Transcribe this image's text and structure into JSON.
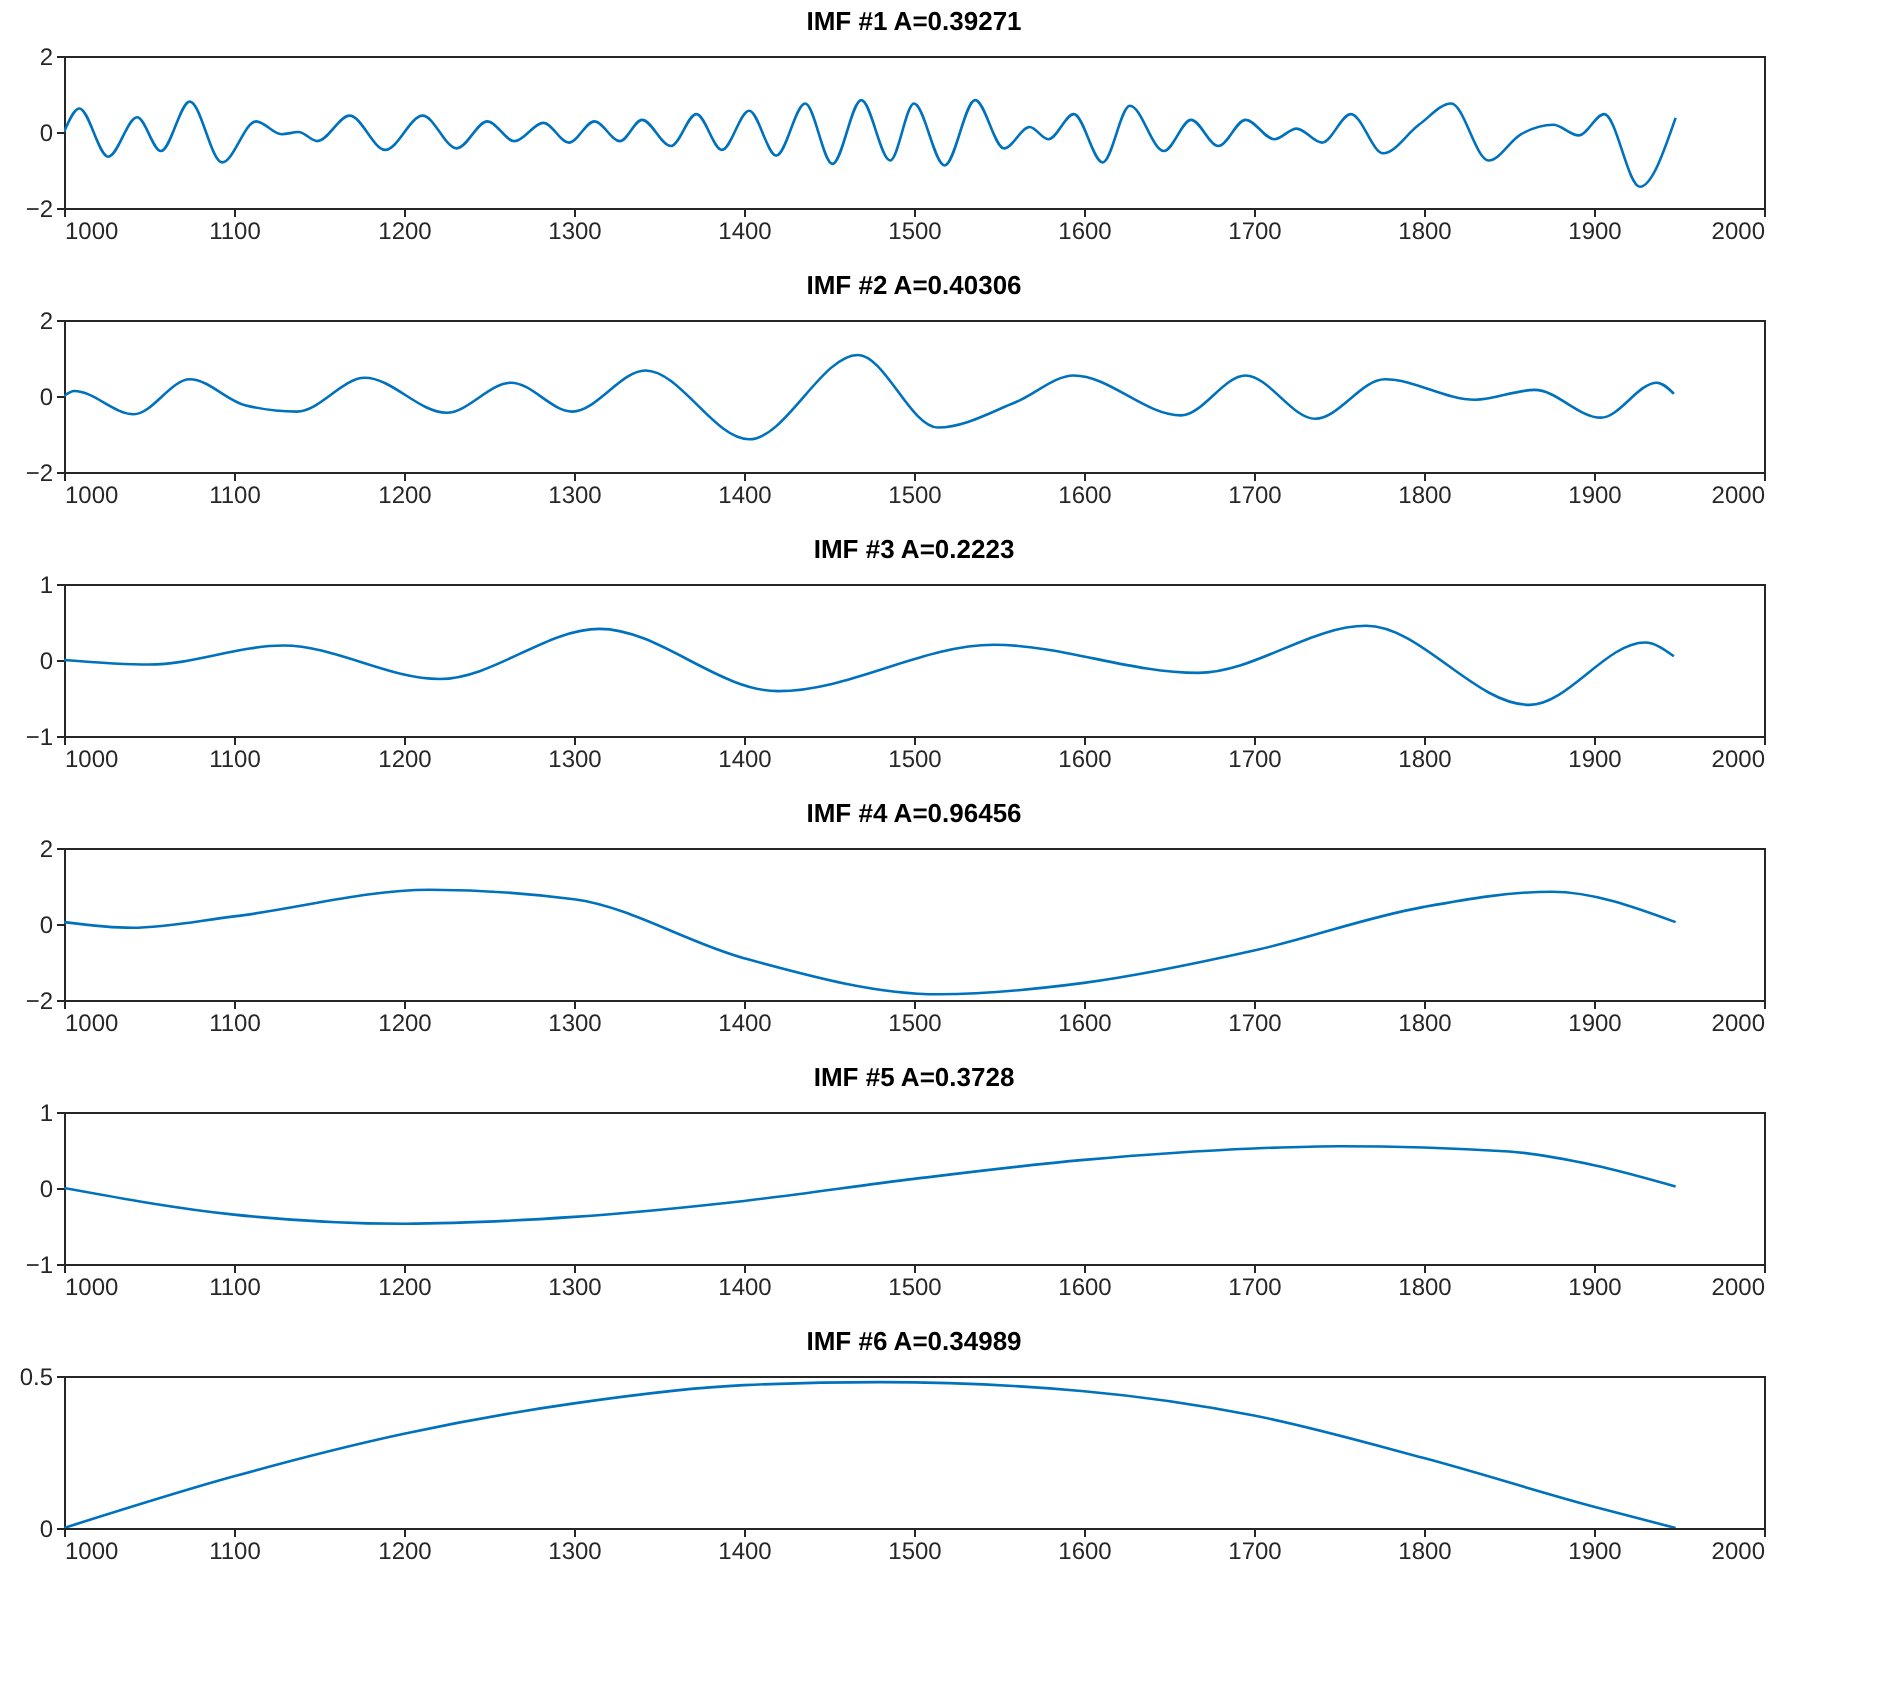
{
  "chart_data": [
    {
      "type": "line",
      "title": "IMF #1 A=0.39271",
      "xlim": [
        1000,
        2000
      ],
      "xticks": [
        1000,
        1100,
        1200,
        1300,
        1400,
        1500,
        1600,
        1700,
        1800,
        1900,
        2000
      ],
      "ylim": [
        -2,
        2
      ],
      "yticks": [
        -2,
        0,
        2
      ],
      "color": "#0072bd",
      "x": [
        1000,
        1009,
        1026,
        1043,
        1057,
        1074,
        1093,
        1113,
        1128,
        1138,
        1149,
        1168,
        1189,
        1211,
        1231,
        1249,
        1265,
        1282,
        1297,
        1312,
        1327,
        1340,
        1357,
        1372,
        1387,
        1403,
        1419,
        1436,
        1452,
        1469,
        1486,
        1500,
        1518,
        1536,
        1553,
        1568,
        1579,
        1594,
        1611,
        1627,
        1647,
        1663,
        1679,
        1695,
        1712,
        1725,
        1740,
        1757,
        1776,
        1797,
        1816,
        1838,
        1857,
        1876,
        1891,
        1906,
        1927,
        1948
      ],
      "values": [
        0,
        0.62,
        -0.65,
        0.39,
        -0.5,
        0.8,
        -0.8,
        0.28,
        -0.06,
        0,
        -0.24,
        0.43,
        -0.47,
        0.43,
        -0.43,
        0.28,
        -0.24,
        0.24,
        -0.28,
        0.28,
        -0.24,
        0.32,
        -0.37,
        0.47,
        -0.47,
        0.56,
        -0.62,
        0.75,
        -0.84,
        0.84,
        -0.75,
        0.75,
        -0.88,
        0.84,
        -0.43,
        0.13,
        -0.19,
        0.47,
        -0.8,
        0.69,
        -0.5,
        0.32,
        -0.37,
        0.32,
        -0.19,
        0.09,
        -0.28,
        0.47,
        -0.56,
        0.19,
        0.75,
        -0.75,
        -0.06,
        0.19,
        -0.09,
        0.47,
        -1.44,
        0.37
      ]
    },
    {
      "type": "line",
      "title": "IMF #2 A=0.40306",
      "xlim": [
        1000,
        2000
      ],
      "xticks": [
        1000,
        1100,
        1200,
        1300,
        1400,
        1500,
        1600,
        1700,
        1800,
        1900,
        2000
      ],
      "ylim": [
        -2,
        2
      ],
      "yticks": [
        -2,
        0,
        2
      ],
      "color": "#0072bd",
      "x": [
        1000,
        1006,
        1041,
        1074,
        1107,
        1137,
        1177,
        1225,
        1263,
        1299,
        1342,
        1403,
        1467,
        1514,
        1560,
        1594,
        1657,
        1695,
        1736,
        1777,
        1830,
        1865,
        1904,
        1937,
        1947
      ],
      "values": [
        0,
        0.13,
        -0.48,
        0.44,
        -0.25,
        -0.41,
        0.48,
        -0.44,
        0.35,
        -0.41,
        0.67,
        -1.14,
        1.08,
        -0.83,
        -0.16,
        0.54,
        -0.51,
        0.54,
        -0.6,
        0.44,
        -0.1,
        0.16,
        -0.57,
        0.35,
        0.06
      ]
    },
    {
      "type": "line",
      "title": "IMF #3 A=0.2223",
      "xlim": [
        1000,
        2000
      ],
      "xticks": [
        1000,
        1100,
        1200,
        1300,
        1400,
        1500,
        1600,
        1700,
        1800,
        1900,
        2000
      ],
      "ylim": [
        -1,
        1
      ],
      "yticks": [
        -1,
        0,
        1
      ],
      "color": "#0072bd",
      "x": [
        1000,
        1050,
        1129,
        1221,
        1315,
        1420,
        1547,
        1667,
        1766,
        1862,
        1930,
        1947
      ],
      "values": [
        0,
        -0.06,
        0.19,
        -0.25,
        0.41,
        -0.41,
        0.2,
        -0.17,
        0.45,
        -0.59,
        0.23,
        0.05
      ]
    },
    {
      "type": "line",
      "title": "IMF #4 A=0.96456",
      "xlim": [
        1000,
        2000
      ],
      "xticks": [
        1000,
        1100,
        1200,
        1300,
        1400,
        1500,
        1600,
        1700,
        1800,
        1900,
        2000
      ],
      "ylim": [
        -2,
        2
      ],
      "yticks": [
        -2,
        0,
        2
      ],
      "color": "#0072bd",
      "x": [
        1000,
        1040,
        1100,
        1215,
        1300,
        1400,
        1515,
        1600,
        1700,
        1800,
        1875,
        1948
      ],
      "values": [
        0.05,
        -0.1,
        0.2,
        0.9,
        0.65,
        -0.9,
        -1.85,
        -1.55,
        -0.7,
        0.45,
        0.85,
        0.05
      ]
    },
    {
      "type": "line",
      "title": "IMF #5 A=0.3728",
      "xlim": [
        1000,
        2000
      ],
      "xticks": [
        1000,
        1100,
        1200,
        1300,
        1400,
        1500,
        1600,
        1700,
        1800,
        1900,
        2000
      ],
      "ylim": [
        -1,
        1
      ],
      "yticks": [
        -1,
        0,
        1
      ],
      "color": "#0072bd",
      "x": [
        1000,
        1100,
        1200,
        1300,
        1400,
        1500,
        1600,
        1700,
        1750,
        1850,
        1900,
        1948
      ],
      "values": [
        0,
        -0.35,
        -0.47,
        -0.38,
        -0.17,
        0.12,
        0.37,
        0.52,
        0.55,
        0.48,
        0.3,
        0.02
      ]
    },
    {
      "type": "line",
      "title": "IMF #6 A=0.34989",
      "xlim": [
        1000,
        2000
      ],
      "xticks": [
        1000,
        1100,
        1200,
        1300,
        1400,
        1500,
        1600,
        1700,
        1800,
        1900,
        2000
      ],
      "ylim": [
        0,
        0.5
      ],
      "yticks": [
        0,
        0.5
      ],
      "color": "#0072bd",
      "x": [
        1000,
        1100,
        1200,
        1300,
        1400,
        1480,
        1600,
        1700,
        1800,
        1900,
        1948
      ],
      "values": [
        0,
        0.17,
        0.31,
        0.41,
        0.47,
        0.48,
        0.45,
        0.37,
        0.23,
        0.07,
        0
      ]
    }
  ]
}
